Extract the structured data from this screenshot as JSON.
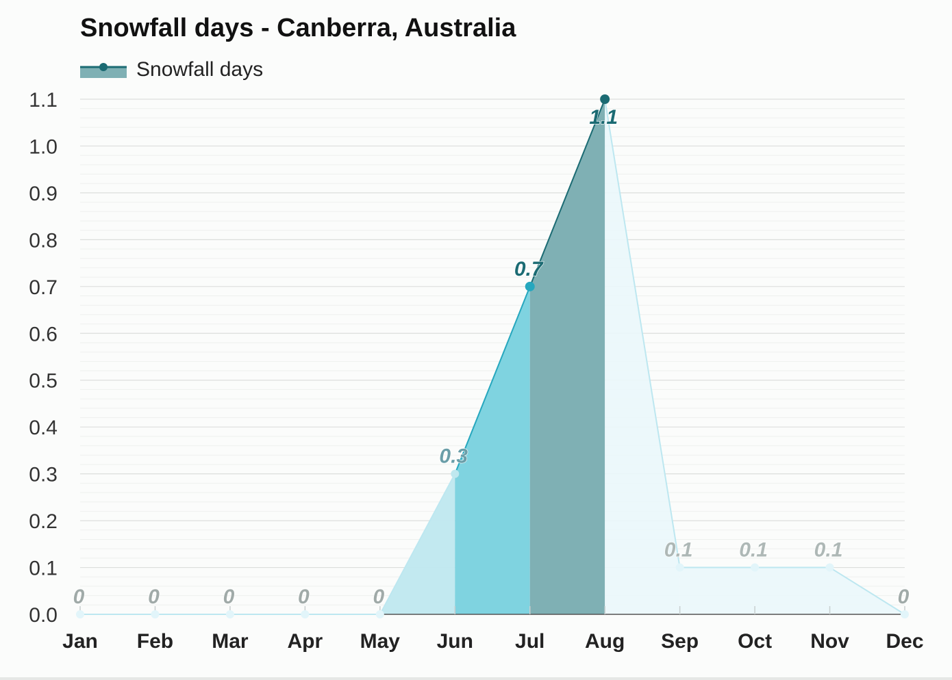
{
  "chart_data": {
    "type": "area",
    "title": "Snowfall days - Canberra, Australia",
    "xlabel": "",
    "ylabel": "",
    "categories": [
      "Jan",
      "Feb",
      "Mar",
      "Apr",
      "May",
      "Jun",
      "Jul",
      "Aug",
      "Sep",
      "Oct",
      "Nov",
      "Dec"
    ],
    "series": [
      {
        "name": "Snowfall days",
        "values": [
          0,
          0,
          0,
          0,
          0,
          0.3,
          0.7,
          1.1,
          0.1,
          0.1,
          0.1,
          0
        ],
        "labels": [
          "0",
          "0",
          "0",
          "0",
          "0",
          "0.3",
          "0.7",
          "1.1",
          "0.1",
          "0.1",
          "0.1",
          "0"
        ]
      }
    ],
    "yticks": [
      "0.0",
      "0.1",
      "0.2",
      "0.3",
      "0.4",
      "0.5",
      "0.6",
      "0.7",
      "0.8",
      "0.9",
      "1.0",
      "1.1"
    ],
    "ylim": [
      0,
      1.1
    ],
    "grid": true,
    "legend": "top-left",
    "colors": {
      "winter_dark": "#1b6b73",
      "winter_dark_fill": "#7fb0b4",
      "jul_line": "#26a7be",
      "jul_fill": "#7fd3e0",
      "jun_fill": "#bfe8ef",
      "light_line": "#bde7f0",
      "light_fill": "#eaf7fb",
      "grid": "#e3e5e3",
      "zero_label": "#a0aaa8"
    }
  }
}
